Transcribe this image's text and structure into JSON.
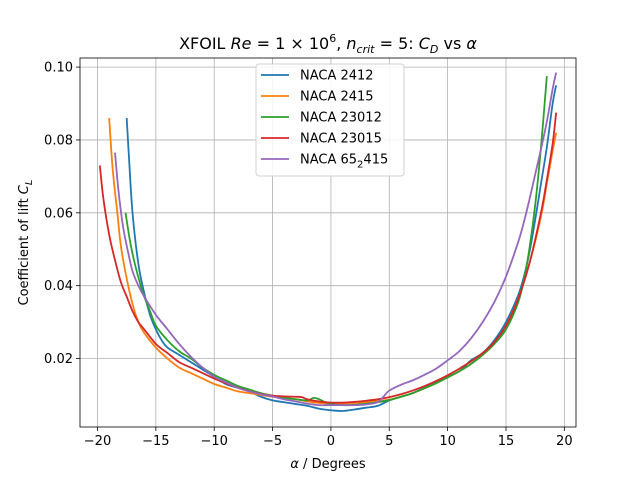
{
  "chart_data": {
    "type": "line",
    "title_parts": [
      "XFOIL ",
      "Re",
      " = 1 × 10",
      "6",
      ", ",
      "n",
      "crit",
      " = 5: ",
      "C",
      "D",
      " vs ",
      "α"
    ],
    "xlabel_parts": [
      "α",
      " / Degrees"
    ],
    "ylabel_parts": [
      "Coefficient of lift ",
      "C",
      "L"
    ],
    "xlim": [
      -21.5,
      21
    ],
    "ylim": [
      0.0012,
      0.1025
    ],
    "xticks": [
      -20,
      -15,
      -10,
      -5,
      0,
      5,
      10,
      15,
      20
    ],
    "xtick_labels": [
      "−20",
      "−15",
      "−10",
      "−5",
      "0",
      "5",
      "10",
      "15",
      "20"
    ],
    "yticks": [
      0.02,
      0.04,
      0.06,
      0.08,
      0.1
    ],
    "ytick_labels": [
      "0.02",
      "0.04",
      "0.06",
      "0.08",
      "0.10"
    ],
    "grid": true,
    "legend_position": "top-center",
    "series": [
      {
        "name": "NACA 2412",
        "color": "#1f77b4",
        "x": [
          -17.5,
          -17.3,
          -17.0,
          -16.5,
          -16.0,
          -15.5,
          -15.0,
          -14.5,
          -14.0,
          -13.0,
          -12.0,
          -11.0,
          -10.0,
          -9.0,
          -8.0,
          -7.0,
          -6.0,
          -5.0,
          -4.0,
          -3.0,
          -2.0,
          -1.0,
          0.0,
          1.0,
          2.0,
          3.0,
          4.0,
          5.0,
          6.0,
          7.0,
          8.0,
          9.0,
          10.0,
          11.0,
          12.0,
          13.0,
          14.0,
          15.0,
          16.0,
          16.5,
          17.0,
          17.5,
          18.0,
          18.5,
          19.0,
          19.3
        ],
        "y": [
          0.086,
          0.075,
          0.06,
          0.046,
          0.038,
          0.032,
          0.028,
          0.025,
          0.023,
          0.021,
          0.019,
          0.017,
          0.015,
          0.013,
          0.012,
          0.011,
          0.0095,
          0.0085,
          0.008,
          0.0075,
          0.007,
          0.0062,
          0.0058,
          0.0056,
          0.006,
          0.0065,
          0.007,
          0.0085,
          0.0095,
          0.0105,
          0.012,
          0.0135,
          0.015,
          0.0165,
          0.0195,
          0.0215,
          0.025,
          0.03,
          0.037,
          0.042,
          0.049,
          0.058,
          0.068,
          0.078,
          0.09,
          0.095
        ]
      },
      {
        "name": "NACA 2415",
        "color": "#ff7f0e",
        "x": [
          -19.0,
          -18.7,
          -18.3,
          -18.0,
          -17.5,
          -17.0,
          -16.5,
          -16.0,
          -15.0,
          -14.0,
          -13.0,
          -12.0,
          -11.0,
          -10.0,
          -9.0,
          -8.0,
          -7.0,
          -6.0,
          -5.0,
          -4.0,
          -3.0,
          -2.0,
          -1.0,
          0.0,
          1.0,
          2.0,
          3.0,
          4.0,
          5.0,
          6.0,
          7.0,
          8.0,
          9.0,
          10.0,
          11.0,
          12.0,
          13.0,
          14.0,
          15.0,
          16.0,
          17.0,
          18.0,
          18.5,
          19.0,
          19.3
        ],
        "y": [
          0.086,
          0.072,
          0.06,
          0.051,
          0.042,
          0.035,
          0.03,
          0.027,
          0.023,
          0.02,
          0.0175,
          0.016,
          0.0145,
          0.013,
          0.012,
          0.011,
          0.0105,
          0.01,
          0.0095,
          0.0092,
          0.0088,
          0.0082,
          0.0078,
          0.0076,
          0.0076,
          0.0078,
          0.008,
          0.0083,
          0.0087,
          0.0095,
          0.0105,
          0.0118,
          0.0132,
          0.0148,
          0.0165,
          0.0185,
          0.021,
          0.024,
          0.029,
          0.036,
          0.046,
          0.059,
          0.068,
          0.077,
          0.082
        ]
      },
      {
        "name": "NACA 23012",
        "color": "#2ca02c",
        "x": [
          -17.6,
          -17.2,
          -16.8,
          -16.3,
          -16.0,
          -15.5,
          -15.0,
          -14.0,
          -13.0,
          -12.0,
          -11.0,
          -10.0,
          -9.0,
          -8.0,
          -7.0,
          -6.0,
          -5.0,
          -4.0,
          -3.0,
          -2.0,
          -1.5,
          -1.0,
          -0.5,
          0.0,
          1.0,
          2.0,
          3.0,
          4.0,
          5.0,
          6.0,
          7.0,
          8.0,
          9.0,
          10.0,
          11.0,
          12.0,
          13.0,
          14.0,
          15.0,
          16.0,
          16.5,
          17.0,
          17.5,
          18.0,
          18.5
        ],
        "y": [
          0.06,
          0.052,
          0.046,
          0.04,
          0.037,
          0.033,
          0.029,
          0.025,
          0.022,
          0.02,
          0.0175,
          0.0155,
          0.014,
          0.0125,
          0.0115,
          0.0105,
          0.0098,
          0.0092,
          0.0088,
          0.0085,
          0.0092,
          0.0088,
          0.008,
          0.0075,
          0.0072,
          0.0073,
          0.0076,
          0.008,
          0.0086,
          0.0095,
          0.0105,
          0.0118,
          0.0132,
          0.0148,
          0.0165,
          0.0185,
          0.021,
          0.024,
          0.028,
          0.035,
          0.041,
          0.05,
          0.062,
          0.078,
          0.0975
        ]
      },
      {
        "name": "NACA 23015",
        "color": "#d62728",
        "x": [
          -19.8,
          -19.5,
          -19.0,
          -18.5,
          -18.0,
          -17.5,
          -17.0,
          -16.5,
          -16.0,
          -15.0,
          -14.0,
          -13.0,
          -12.0,
          -11.0,
          -10.0,
          -9.0,
          -8.0,
          -7.0,
          -6.0,
          -5.0,
          -4.0,
          -3.0,
          -2.5,
          -2.0,
          -1.0,
          0.0,
          1.0,
          2.0,
          3.0,
          4.0,
          5.0,
          6.0,
          7.0,
          8.0,
          9.0,
          10.0,
          11.0,
          12.0,
          13.0,
          14.0,
          15.0,
          16.0,
          17.0,
          18.0,
          18.5,
          19.0,
          19.3
        ],
        "y": [
          0.073,
          0.064,
          0.054,
          0.047,
          0.041,
          0.037,
          0.033,
          0.03,
          0.028,
          0.024,
          0.0215,
          0.019,
          0.0175,
          0.016,
          0.0145,
          0.0132,
          0.012,
          0.011,
          0.0103,
          0.0098,
          0.0096,
          0.0095,
          0.0094,
          0.0088,
          0.0082,
          0.0079,
          0.0079,
          0.0081,
          0.0084,
          0.0088,
          0.0094,
          0.0102,
          0.0112,
          0.0124,
          0.0138,
          0.0154,
          0.0172,
          0.0192,
          0.0215,
          0.0245,
          0.029,
          0.036,
          0.046,
          0.06,
          0.069,
          0.079,
          0.0875
        ]
      },
      {
        "name": "NACA 65₂415",
        "label_parts": [
          "NACA 65",
          "2",
          "415"
        ],
        "color": "#9467bd",
        "x": [
          -18.5,
          -18.2,
          -17.8,
          -17.3,
          -17.0,
          -16.5,
          -16.0,
          -15.0,
          -14.0,
          -13.0,
          -12.0,
          -11.0,
          -10.0,
          -9.0,
          -8.0,
          -7.0,
          -6.0,
          -5.0,
          -4.0,
          -3.0,
          -2.0,
          -1.0,
          0.0,
          1.0,
          2.0,
          3.0,
          4.0,
          4.5,
          5.0,
          6.0,
          7.0,
          8.0,
          9.0,
          10.0,
          11.0,
          12.0,
          13.0,
          14.0,
          15.0,
          16.0,
          16.5,
          17.0,
          17.5,
          18.0,
          18.5,
          19.0,
          19.3
        ],
        "y": [
          0.0765,
          0.066,
          0.056,
          0.048,
          0.044,
          0.04,
          0.037,
          0.032,
          0.028,
          0.024,
          0.0205,
          0.0175,
          0.015,
          0.0135,
          0.012,
          0.011,
          0.0102,
          0.0096,
          0.0088,
          0.0082,
          0.0076,
          0.0072,
          0.0072,
          0.0072,
          0.0072,
          0.0074,
          0.008,
          0.0095,
          0.0112,
          0.0128,
          0.014,
          0.0155,
          0.0172,
          0.0195,
          0.022,
          0.0255,
          0.03,
          0.0355,
          0.0425,
          0.0515,
          0.057,
          0.0635,
          0.0705,
          0.0775,
          0.085,
          0.094,
          0.0985
        ]
      }
    ]
  }
}
